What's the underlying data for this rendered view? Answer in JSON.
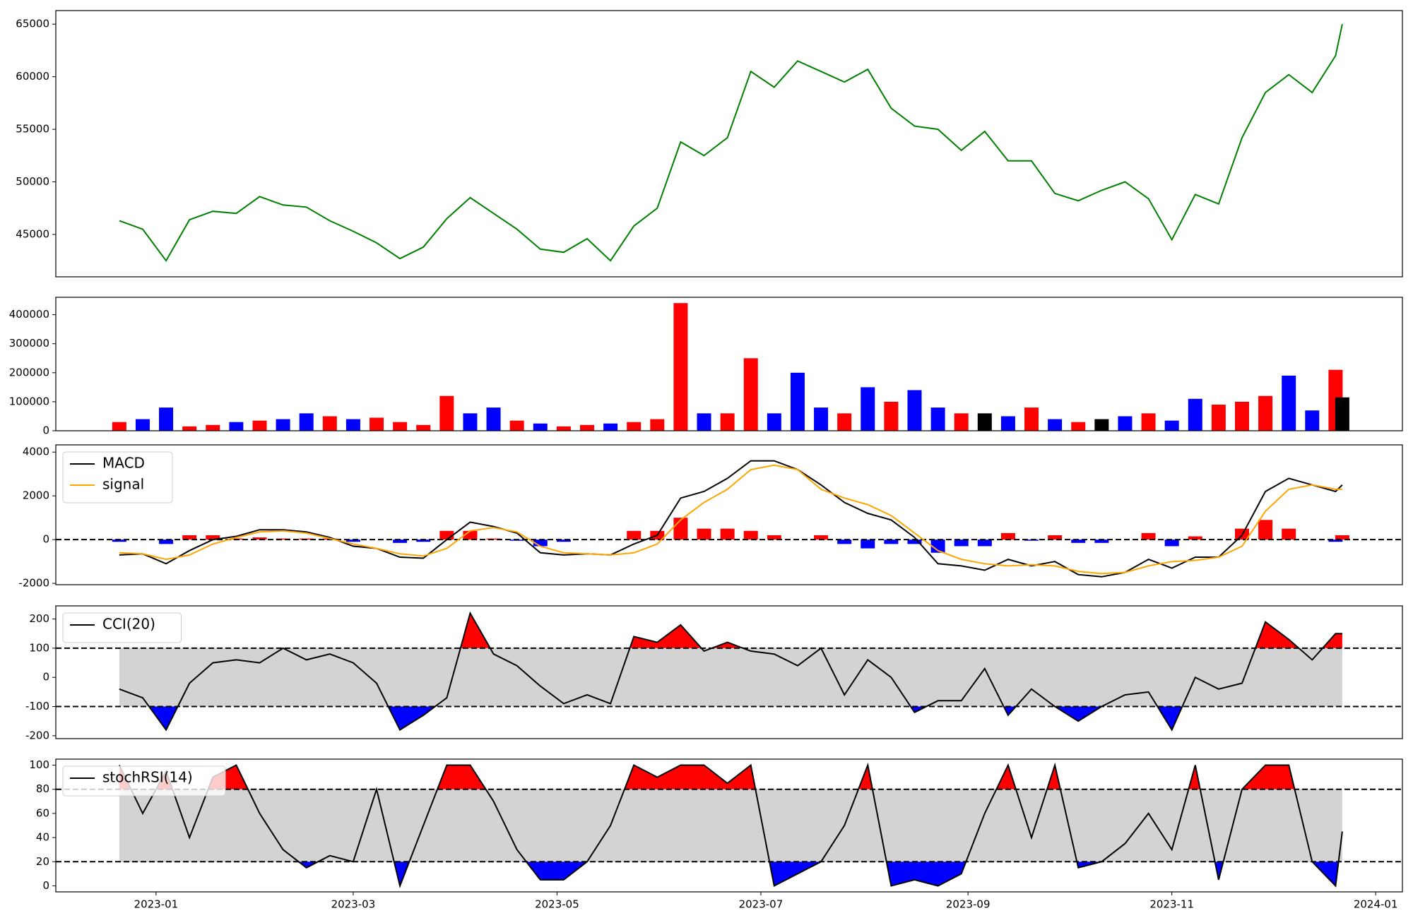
{
  "chart_data": [
    {
      "type": "line",
      "color": "#008000",
      "x": [
        -11,
        -4,
        3,
        10,
        17,
        24,
        31,
        38,
        45,
        52,
        59,
        66,
        73,
        80,
        87,
        94,
        101,
        108,
        115,
        122,
        129,
        136,
        143,
        150,
        157,
        164,
        171,
        178,
        185,
        192,
        199,
        206,
        213,
        220,
        227,
        234,
        241,
        248,
        255,
        262,
        269,
        276,
        283,
        290,
        297,
        304,
        311,
        318,
        325,
        332,
        339,
        346,
        353,
        355
      ],
      "values": [
        46300,
        45500,
        42500,
        46400,
        47200,
        47000,
        48600,
        47800,
        47600,
        46300,
        45300,
        44200,
        42700,
        43800,
        46500,
        48500,
        47000,
        45500,
        43600,
        43300,
        44600,
        42500,
        45800,
        47500,
        53800,
        52500,
        54200,
        60500,
        59000,
        61500,
        60500,
        59500,
        60700,
        57000,
        55300,
        55000,
        53000,
        54800,
        52000,
        52000,
        48900,
        48200,
        49200,
        50000,
        48400,
        44500,
        48800,
        47900,
        54200,
        58500,
        60200,
        58500,
        62000,
        65000
      ],
      "xlim": [
        -30,
        373
      ],
      "ylim": [
        40970,
        66290
      ],
      "yticks": [
        45000,
        50000,
        55000,
        60000,
        65000
      ]
    },
    {
      "type": "bar",
      "x": [
        -11,
        -4,
        3,
        10,
        17,
        24,
        31,
        38,
        45,
        52,
        59,
        66,
        73,
        80,
        87,
        94,
        101,
        108,
        115,
        122,
        129,
        136,
        143,
        150,
        157,
        164,
        171,
        178,
        185,
        192,
        199,
        206,
        213,
        220,
        227,
        234,
        241,
        248,
        255,
        262,
        269,
        276,
        283,
        290,
        297,
        304,
        311,
        318,
        325,
        332,
        339,
        346,
        353,
        355
      ],
      "values": [
        30000,
        40000,
        80000,
        15000,
        20000,
        30000,
        35000,
        40000,
        60000,
        50000,
        40000,
        45000,
        30000,
        20000,
        120000,
        60000,
        80000,
        35000,
        25000,
        15000,
        20000,
        25000,
        30000,
        40000,
        440000,
        60000,
        60000,
        250000,
        60000,
        200000,
        80000,
        60000,
        150000,
        100000,
        140000,
        80000,
        60000,
        60000,
        50000,
        80000,
        40000,
        30000,
        40000,
        50000,
        60000,
        35000,
        110000,
        90000,
        100000,
        120000,
        190000,
        70000,
        210000,
        115000
      ],
      "colors": [
        "red",
        "blue",
        "blue",
        "red",
        "red",
        "blue",
        "red",
        "blue",
        "blue",
        "red",
        "blue",
        "red",
        "red",
        "red",
        "red",
        "blue",
        "blue",
        "red",
        "blue",
        "red",
        "red",
        "blue",
        "red",
        "red",
        "red",
        "blue",
        "red",
        "red",
        "blue",
        "blue",
        "blue",
        "red",
        "blue",
        "red",
        "blue",
        "blue",
        "red",
        "black",
        "blue",
        "red",
        "blue",
        "red",
        "black",
        "blue",
        "red",
        "blue",
        "blue",
        "red",
        "red",
        "red",
        "blue",
        "blue",
        "red",
        "black"
      ],
      "xlim": [
        -30,
        373
      ],
      "ylim": [
        0,
        460000
      ],
      "yticks": [
        0,
        100000,
        200000,
        300000,
        400000
      ]
    },
    {
      "type": "combo",
      "x": [
        -11,
        -4,
        3,
        10,
        17,
        24,
        31,
        38,
        45,
        52,
        59,
        66,
        73,
        80,
        87,
        94,
        101,
        108,
        115,
        122,
        129,
        136,
        143,
        150,
        157,
        164,
        171,
        178,
        185,
        192,
        199,
        206,
        213,
        220,
        227,
        234,
        241,
        248,
        255,
        262,
        269,
        276,
        283,
        290,
        297,
        304,
        311,
        318,
        325,
        332,
        339,
        346,
        353,
        355
      ],
      "series": [
        {
          "name": "MACD",
          "type": "line",
          "color": "#000000",
          "values": [
            -700,
            -650,
            -1100,
            -500,
            0,
            150,
            450,
            450,
            350,
            100,
            -300,
            -400,
            -800,
            -850,
            0,
            800,
            600,
            300,
            -600,
            -700,
            -650,
            -700,
            -200,
            200,
            1900,
            2200,
            2800,
            3600,
            3600,
            3200,
            2500,
            1700,
            1200,
            900,
            100,
            -1100,
            -1200,
            -1400,
            -900,
            -1200,
            -1000,
            -1600,
            -1700,
            -1500,
            -900,
            -1300,
            -800,
            -800,
            200,
            2200,
            2800,
            2500,
            2200,
            2500
          ]
        },
        {
          "name": "signal",
          "type": "line",
          "color": "#ffa500",
          "values": [
            -600,
            -650,
            -900,
            -700,
            -200,
            100,
            350,
            400,
            300,
            50,
            -200,
            -400,
            -650,
            -750,
            -400,
            400,
            550,
            350,
            -300,
            -600,
            -650,
            -700,
            -600,
            -200,
            900,
            1700,
            2300,
            3200,
            3400,
            3200,
            2300,
            1900,
            1600,
            1100,
            300,
            -500,
            -900,
            -1100,
            -1200,
            -1150,
            -1200,
            -1450,
            -1550,
            -1500,
            -1200,
            -1000,
            -950,
            -800,
            -300,
            1300,
            2300,
            2500,
            2300,
            2300
          ]
        },
        {
          "type": "bar",
          "up_color": "red",
          "down_color": "blue",
          "values": [
            -100,
            0,
            -200,
            200,
            200,
            50,
            100,
            50,
            50,
            50,
            -100,
            0,
            -150,
            -100,
            400,
            400,
            50,
            -50,
            -300,
            -100,
            0,
            0,
            400,
            400,
            1000,
            500,
            500,
            400,
            200,
            0,
            200,
            -200,
            -400,
            -200,
            -200,
            -600,
            -300,
            -300,
            300,
            -50,
            200,
            -150,
            -150,
            0,
            300,
            -300,
            150,
            0,
            500,
            900,
            500,
            0,
            -100,
            200
          ]
        }
      ],
      "hlines": [
        0
      ],
      "xlim": [
        -30,
        373
      ],
      "ylim": [
        -2060,
        4330
      ],
      "yticks": [
        -2000,
        0,
        2000,
        4000
      ]
    },
    {
      "type": "oscillator",
      "x": [
        -11,
        -4,
        3,
        10,
        17,
        24,
        31,
        38,
        45,
        52,
        59,
        66,
        73,
        80,
        87,
        94,
        101,
        108,
        115,
        122,
        129,
        136,
        143,
        150,
        157,
        164,
        171,
        178,
        185,
        192,
        199,
        206,
        213,
        220,
        227,
        234,
        241,
        248,
        255,
        262,
        269,
        276,
        283,
        290,
        297,
        304,
        311,
        318,
        325,
        332,
        339,
        346,
        353,
        355
      ],
      "series": [
        {
          "name": "CCI(20)",
          "color": "#000000",
          "values": [
            -40,
            -70,
            -180,
            -20,
            50,
            60,
            50,
            100,
            60,
            80,
            50,
            -20,
            -180,
            -130,
            -70,
            220,
            80,
            40,
            -30,
            -90,
            -60,
            -90,
            140,
            120,
            180,
            90,
            120,
            90,
            80,
            40,
            100,
            -60,
            60,
            0,
            -120,
            -80,
            -80,
            30,
            -130,
            -40,
            -100,
            -150,
            -100,
            -60,
            -50,
            -180,
            0,
            -40,
            -20,
            190,
            130,
            60,
            150,
            150
          ]
        }
      ],
      "upper": 100,
      "lower": -100,
      "band_color": "#d3d3d3",
      "upper_color": "red",
      "lower_color": "blue",
      "xlim": [
        -30,
        373
      ],
      "ylim": [
        -210,
        245
      ],
      "yticks": [
        -200,
        -100,
        0,
        100,
        200
      ]
    },
    {
      "type": "oscillator",
      "x": [
        -11,
        -4,
        3,
        10,
        17,
        24,
        31,
        38,
        45,
        52,
        59,
        66,
        73,
        80,
        87,
        94,
        101,
        108,
        115,
        122,
        129,
        136,
        143,
        150,
        157,
        164,
        171,
        178,
        185,
        192,
        199,
        206,
        213,
        220,
        227,
        234,
        241,
        248,
        255,
        262,
        269,
        276,
        283,
        290,
        297,
        304,
        311,
        318,
        325,
        332,
        339,
        346,
        353,
        355
      ],
      "series": [
        {
          "name": "stochRSI(14)",
          "color": "#000000",
          "values": [
            100,
            60,
            95,
            40,
            90,
            100,
            60,
            30,
            15,
            25,
            20,
            80,
            0,
            50,
            100,
            100,
            70,
            30,
            5,
            5,
            20,
            50,
            100,
            90,
            100,
            100,
            85,
            100,
            0,
            10,
            20,
            50,
            100,
            0,
            5,
            0,
            10,
            60,
            100,
            40,
            100,
            15,
            20,
            35,
            60,
            30,
            100,
            5,
            80,
            100,
            100,
            20,
            0,
            45
          ]
        }
      ],
      "upper": 80,
      "lower": 20,
      "band_color": "#d3d3d3",
      "upper_color": "red",
      "lower_color": "blue",
      "xlim": [
        -30,
        373
      ],
      "ylim": [
        -5,
        105
      ],
      "yticks": [
        0,
        20,
        40,
        60,
        80,
        100
      ],
      "xticks": [
        {
          "value": 0,
          "label": "2023-01"
        },
        {
          "value": 59,
          "label": "2023-03"
        },
        {
          "value": 120,
          "label": "2023-05"
        },
        {
          "value": 181,
          "label": "2023-07"
        },
        {
          "value": 243,
          "label": "2023-09"
        },
        {
          "value": 304,
          "label": "2023-11"
        },
        {
          "value": 365,
          "label": "2024-01"
        }
      ]
    }
  ]
}
